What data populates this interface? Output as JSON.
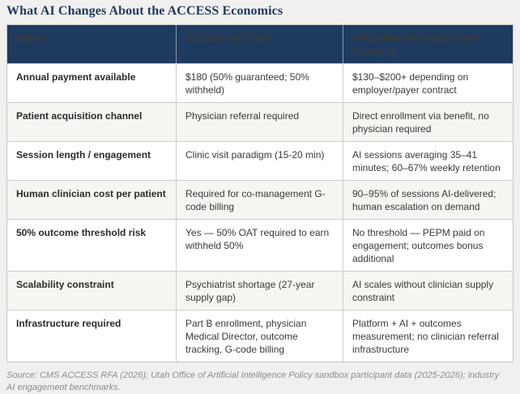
{
  "page": {
    "title": "What AI Changes About the ACCESS Economics"
  },
  "colors": {
    "title_text": "#1e3a5f",
    "header_bg": "#1e3a5f",
    "header_text": "#ffffff",
    "row_alt_bg": "#f6f5f2",
    "border": "#cccccc",
    "page_bg": "#f1f0ee",
    "source_text": "#8c8c8c"
  },
  "table": {
    "headers": [
      "Metric",
      "ACCESS BH Track",
      "AI-Enabled BH Model (Utah Example)"
    ],
    "rows": [
      {
        "metric": "Annual payment available",
        "access": "$180 (50% guaranteed; 50% withheld)",
        "ai": "$130–$200+ depending on employer/payer contract"
      },
      {
        "metric": "Patient acquisition channel",
        "access": "Physician referral required",
        "ai": "Direct enrollment via benefit, no physician required"
      },
      {
        "metric": "Session length / engagement",
        "access": "Clinic visit paradigm (15-20 min)",
        "ai": "AI sessions averaging 35–41 minutes; 60–67% weekly retention"
      },
      {
        "metric": "Human clinician cost per patient",
        "access": "Required for co-management G-code billing",
        "ai": "90–95% of sessions AI-delivered; human escalation on demand"
      },
      {
        "metric": "50% outcome threshold risk",
        "access": "Yes — 50% OAT required to earn withheld 50%",
        "ai": "No threshold — PEPM paid on engagement; outcomes bonus additional"
      },
      {
        "metric": "Scalability constraint",
        "access": "Psychiatrist shortage (27-year supply gap)",
        "ai": "AI scales without clinician supply constraint"
      },
      {
        "metric": "Infrastructure required",
        "access": "Part B enrollment, physician Medical Director, outcome tracking, G-code billing",
        "ai": "Platform + AI + outcomes measurement; no clinician referral infrastructure"
      }
    ]
  },
  "source_note": "Source: CMS ACCESS RFA (2026); Utah Office of Artificial Intelligence Policy sandbox participant data (2025-2026); industry AI engagement benchmarks."
}
